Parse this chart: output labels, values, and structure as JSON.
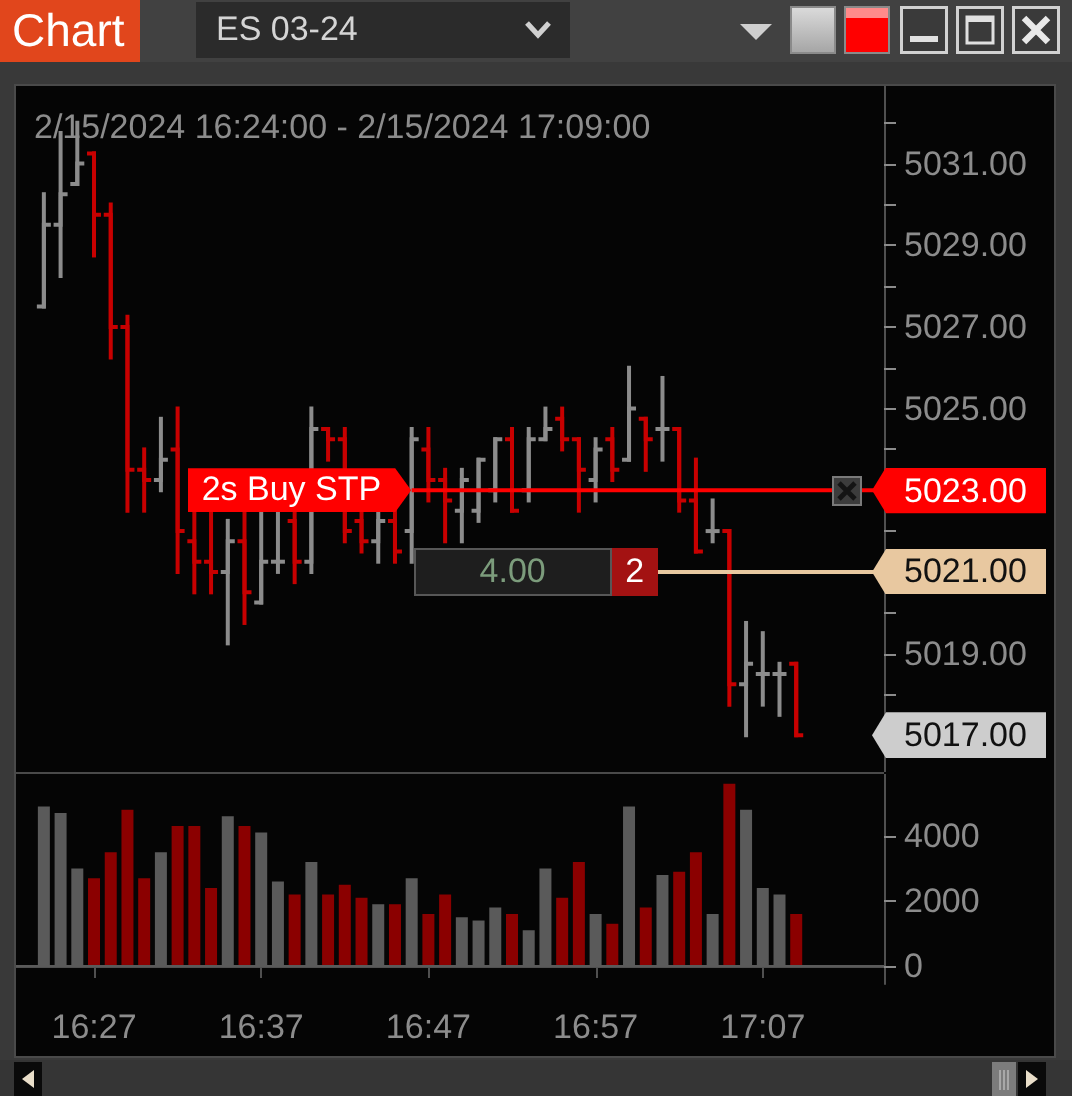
{
  "chart_data": [
    {
      "type": "candlestick",
      "title": "2/15/2024 16:24:00 - 2/15/2024 17:09:00",
      "x": [
        "2024-02-15T16:24",
        "2024-02-15T16:25",
        "2024-02-15T16:26",
        "2024-02-15T16:27",
        "2024-02-15T16:28",
        "2024-02-15T16:29",
        "2024-02-15T16:30",
        "2024-02-15T16:31",
        "2024-02-15T16:32",
        "2024-02-15T16:33",
        "2024-02-15T16:34",
        "2024-02-15T16:35",
        "2024-02-15T16:36",
        "2024-02-15T16:37",
        "2024-02-15T16:38",
        "2024-02-15T16:39",
        "2024-02-15T16:40",
        "2024-02-15T16:41",
        "2024-02-15T16:42",
        "2024-02-15T16:43",
        "2024-02-15T16:44",
        "2024-02-15T16:45",
        "2024-02-15T16:46",
        "2024-02-15T16:47",
        "2024-02-15T16:48",
        "2024-02-15T16:49",
        "2024-02-15T16:50",
        "2024-02-15T16:51",
        "2024-02-15T16:52",
        "2024-02-15T16:53",
        "2024-02-15T16:54",
        "2024-02-15T16:55",
        "2024-02-15T16:56",
        "2024-02-15T16:57",
        "2024-02-15T16:58",
        "2024-02-15T16:59",
        "2024-02-15T17:00",
        "2024-02-15T17:01",
        "2024-02-15T17:02",
        "2024-02-15T17:03",
        "2024-02-15T17:04",
        "2024-02-15T17:05",
        "2024-02-15T17:06",
        "2024-02-15T17:07",
        "2024-02-15T17:08",
        "2024-02-15T17:09"
      ],
      "ohlc": [
        [
          5027.5,
          5030.25,
          5027.5,
          5029.5
        ],
        [
          5029.5,
          5031.75,
          5028.25,
          5030.25
        ],
        [
          5030.5,
          5032.0,
          5030.5,
          5031.0
        ],
        [
          5031.25,
          5031.25,
          5028.75,
          5029.75
        ],
        [
          5029.75,
          5030.0,
          5026.25,
          5027.0
        ],
        [
          5027.0,
          5027.25,
          5022.5,
          5023.5
        ],
        [
          5023.5,
          5024.0,
          5022.5,
          5023.25
        ],
        [
          5023.25,
          5024.75,
          5023.0,
          5023.75
        ],
        [
          5024.0,
          5025.0,
          5021.0,
          5022.0
        ],
        [
          5021.75,
          5022.5,
          5020.5,
          5021.25
        ],
        [
          5021.25,
          5022.5,
          5020.5,
          5021.0
        ],
        [
          5021.0,
          5022.25,
          5019.25,
          5021.75
        ],
        [
          5021.75,
          5022.5,
          5019.75,
          5020.5
        ],
        [
          5020.25,
          5022.5,
          5020.25,
          5021.25
        ],
        [
          5021.25,
          5022.5,
          5021.0,
          5021.25
        ],
        [
          5022.25,
          5022.5,
          5020.75,
          5021.25
        ],
        [
          5021.25,
          5025.0,
          5021.0,
          5024.5
        ],
        [
          5024.5,
          5024.5,
          5023.75,
          5024.25
        ],
        [
          5024.25,
          5024.5,
          5021.75,
          5022.0
        ],
        [
          5022.25,
          5022.5,
          5021.5,
          5021.75
        ],
        [
          5021.75,
          5022.5,
          5021.25,
          5022.25
        ],
        [
          5022.25,
          5022.5,
          5021.25,
          5021.5
        ],
        [
          5022.0,
          5024.5,
          5021.25,
          5024.25
        ],
        [
          5024.0,
          5024.5,
          5022.75,
          5023.25
        ],
        [
          5023.25,
          5023.5,
          5021.75,
          5022.75
        ],
        [
          5022.5,
          5023.5,
          5021.75,
          5023.25
        ],
        [
          5022.5,
          5023.75,
          5022.25,
          5023.75
        ],
        [
          5023.0,
          5024.25,
          5022.75,
          5024.25
        ],
        [
          5024.25,
          5024.5,
          5022.5,
          5022.5
        ],
        [
          5023.0,
          5024.5,
          5022.75,
          5024.25
        ],
        [
          5024.25,
          5025.0,
          5024.25,
          5024.5
        ],
        [
          5024.75,
          5025.0,
          5024.0,
          5024.25
        ],
        [
          5024.25,
          5024.25,
          5022.5,
          5023.5
        ],
        [
          5023.25,
          5024.25,
          5022.75,
          5024.0
        ],
        [
          5024.25,
          5024.5,
          5023.25,
          5023.5
        ],
        [
          5023.75,
          5026.0,
          5023.75,
          5025.0
        ],
        [
          5024.75,
          5024.75,
          5023.5,
          5024.25
        ],
        [
          5024.5,
          5025.75,
          5023.75,
          5024.5
        ],
        [
          5024.5,
          5024.5,
          5022.5,
          5022.75
        ],
        [
          5022.75,
          5023.75,
          5021.5,
          5021.5
        ],
        [
          5022.0,
          5022.75,
          5021.75,
          5022.0
        ],
        [
          5022.0,
          5022.0,
          5017.75,
          5018.25
        ],
        [
          5018.25,
          5019.75,
          5017.0,
          5018.75
        ],
        [
          5018.5,
          5019.5,
          5017.75,
          5018.5
        ],
        [
          5018.5,
          5018.75,
          5017.5,
          5018.5
        ],
        [
          5018.75,
          5018.75,
          5017.0,
          5017.0
        ]
      ],
      "colors": [
        "#8c8c8c",
        "#8c8c8c",
        "#8c8c8c",
        "#c80000",
        "#c80000",
        "#c80000",
        "#c80000",
        "#8c8c8c",
        "#c80000",
        "#c80000",
        "#c80000",
        "#8c8c8c",
        "#c80000",
        "#8c8c8c",
        "#8c8c8c",
        "#c80000",
        "#8c8c8c",
        "#c80000",
        "#c80000",
        "#c80000",
        "#8c8c8c",
        "#c80000",
        "#8c8c8c",
        "#c80000",
        "#c80000",
        "#8c8c8c",
        "#8c8c8c",
        "#8c8c8c",
        "#c80000",
        "#8c8c8c",
        "#8c8c8c",
        "#c80000",
        "#c80000",
        "#8c8c8c",
        "#c80000",
        "#8c8c8c",
        "#c80000",
        "#8c8c8c",
        "#c80000",
        "#c80000",
        "#8c8c8c",
        "#c80000",
        "#8c8c8c",
        "#8c8c8c",
        "#8c8c8c",
        "#c80000"
      ],
      "xlim": [
        "2024-02-15T16:22:20",
        "2024-02-15T17:14:15"
      ],
      "ylim": [
        5016.1,
        5032.9
      ],
      "yticks": [
        {
          "value": 5017,
          "label": "5017.00"
        },
        {
          "value": 5018,
          "label": null
        },
        {
          "value": 5019,
          "label": "5019.00"
        },
        {
          "value": 5020,
          "label": null
        },
        {
          "value": 5022,
          "label": null
        },
        {
          "value": 5024,
          "label": null
        },
        {
          "value": 5025,
          "label": "5025.00"
        },
        {
          "value": 5026,
          "label": null
        },
        {
          "value": 5027,
          "label": "5027.00"
        },
        {
          "value": 5028,
          "label": null
        },
        {
          "value": 5029,
          "label": "5029.00"
        },
        {
          "value": 5030,
          "label": null
        },
        {
          "value": 5031,
          "label": "5031.00"
        },
        {
          "value": 5032,
          "label": null
        }
      ],
      "tick_labels": "y",
      "ref_lines": [
        {
          "axis": "y",
          "value": 5023,
          "label": "5023.00",
          "color": "#ff0000"
        },
        {
          "axis": "y",
          "value": 5021,
          "label": "5021.00",
          "color": "#e8c8a0"
        }
      ],
      "annotations": [
        "Chart",
        "ES 03-24",
        {
          "text": "2s Buy STP",
          "x": "2024-02-15T16:46",
          "y": 5023
        },
        "4.00",
        "2"
      ]
    },
    {
      "type": "bar",
      "x": [
        "2024-02-15T16:24",
        "2024-02-15T16:25",
        "2024-02-15T16:26",
        "2024-02-15T16:27",
        "2024-02-15T16:28",
        "2024-02-15T16:29",
        "2024-02-15T16:30",
        "2024-02-15T16:31",
        "2024-02-15T16:32",
        "2024-02-15T16:33",
        "2024-02-15T16:34",
        "2024-02-15T16:35",
        "2024-02-15T16:36",
        "2024-02-15T16:37",
        "2024-02-15T16:38",
        "2024-02-15T16:39",
        "2024-02-15T16:40",
        "2024-02-15T16:41",
        "2024-02-15T16:42",
        "2024-02-15T16:43",
        "2024-02-15T16:44",
        "2024-02-15T16:45",
        "2024-02-15T16:46",
        "2024-02-15T16:47",
        "2024-02-15T16:48",
        "2024-02-15T16:49",
        "2024-02-15T16:50",
        "2024-02-15T16:51",
        "2024-02-15T16:52",
        "2024-02-15T16:53",
        "2024-02-15T16:54",
        "2024-02-15T16:55",
        "2024-02-15T16:56",
        "2024-02-15T16:57",
        "2024-02-15T16:58",
        "2024-02-15T16:59",
        "2024-02-15T17:00",
        "2024-02-15T17:01",
        "2024-02-15T17:02",
        "2024-02-15T17:03",
        "2024-02-15T17:04",
        "2024-02-15T17:05",
        "2024-02-15T17:06",
        "2024-02-15T17:07",
        "2024-02-15T17:08",
        "2024-02-15T17:09"
      ],
      "values": [
        4900,
        4700,
        3000,
        2700,
        3500,
        4800,
        2700,
        3500,
        4300,
        4300,
        2400,
        4600,
        4300,
        4100,
        2600,
        2200,
        3200,
        2200,
        2500,
        2100,
        1900,
        1900,
        2700,
        1600,
        2200,
        1500,
        1400,
        1800,
        1600,
        1100,
        3000,
        2100,
        3200,
        1600,
        1300,
        4900,
        1800,
        2800,
        2900,
        3500,
        1600,
        5600,
        4800,
        2400,
        2200,
        1600
      ],
      "colors": [
        "#5a5a5a",
        "#5a5a5a",
        "#5a5a5a",
        "#8b0000",
        "#8b0000",
        "#8b0000",
        "#8b0000",
        "#5a5a5a",
        "#8b0000",
        "#8b0000",
        "#8b0000",
        "#5a5a5a",
        "#8b0000",
        "#5a5a5a",
        "#5a5a5a",
        "#8b0000",
        "#5a5a5a",
        "#8b0000",
        "#8b0000",
        "#8b0000",
        "#5a5a5a",
        "#8b0000",
        "#5a5a5a",
        "#8b0000",
        "#8b0000",
        "#5a5a5a",
        "#5a5a5a",
        "#5a5a5a",
        "#8b0000",
        "#5a5a5a",
        "#5a5a5a",
        "#8b0000",
        "#8b0000",
        "#5a5a5a",
        "#8b0000",
        "#5a5a5a",
        "#8b0000",
        "#5a5a5a",
        "#8b0000",
        "#8b0000",
        "#5a5a5a",
        "#8b0000",
        "#5a5a5a",
        "#5a5a5a",
        "#5a5a5a",
        "#8b0000"
      ],
      "xlim": [
        "2024-02-15T16:22:20",
        "2024-02-15T17:14:15"
      ],
      "xticks": [
        {
          "value": "2024-02-15T16:27",
          "label": "16:27"
        },
        {
          "value": "2024-02-15T16:37",
          "label": "16:37"
        },
        {
          "value": "2024-02-15T16:47",
          "label": "16:47"
        },
        {
          "value": "2024-02-15T16:57",
          "label": "16:57"
        },
        {
          "value": "2024-02-15T17:07",
          "label": "17:07"
        }
      ],
      "ylim": [
        -550,
        5900
      ],
      "yticks": [
        0,
        2000,
        4000
      ],
      "ref_lines": [
        {
          "axis": "y",
          "value": 0,
          "color": "#5a5a5a"
        }
      ]
    }
  ]
}
